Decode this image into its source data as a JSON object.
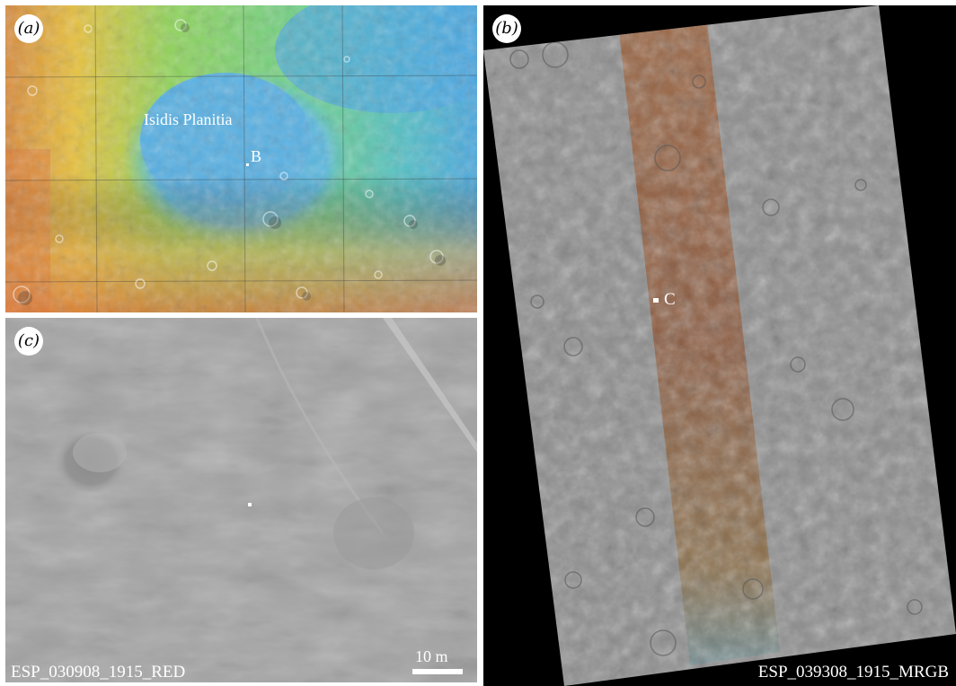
{
  "panel_a": {
    "badge": "(a)",
    "region_label": "Isidis Planitia",
    "site_marker_label": "B"
  },
  "panel_b": {
    "badge": "(b)",
    "site_marker_label": "C",
    "image_id": "ESP_039308_1915_MRGB"
  },
  "panel_c": {
    "badge": "(c)",
    "scale_bar_label": "10 m",
    "image_id": "ESP_030908_1915_RED"
  }
}
